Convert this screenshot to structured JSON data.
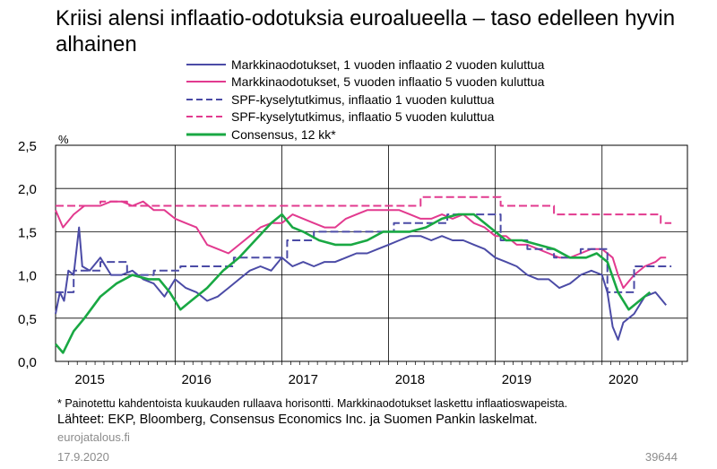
{
  "title": "Kriisi alensi inflaatio-odotuksia euroalueella – taso edelleen hyvin alhainen",
  "unit_label": "%",
  "footnote": "* Painotettu kahdentoista kuukauden rullaava horisontti. Markkinaodotukset laskettu inflaatioswapeista.",
  "sources": "Lähteet: EKP, Bloomberg, Consensus Economics Inc. ja Suomen Pankin laskelmat.",
  "site": "eurojatalous.fi",
  "date": "17.9.2020",
  "chart_code": "39644",
  "colors": {
    "navy": "#4b4ba6",
    "pink": "#e23a8f",
    "green": "#19a843",
    "grid": "#000000"
  },
  "chart_data": {
    "type": "line",
    "xlim": [
      2014.88,
      2020.8
    ],
    "ylim": [
      0,
      2.5
    ],
    "y_ticks": [
      "0,0",
      "0,5",
      "1,0",
      "1,5",
      "2,0",
      "2,5"
    ],
    "x_ticks": [
      "2015",
      "2016",
      "2017",
      "2018",
      "2019",
      "2020"
    ],
    "grid": true,
    "legend_placement": "top",
    "series": [
      {
        "name": "Markkinaodotukset, 1 vuoden inflaatio 2 vuoden kuluttua",
        "color": "#4b4ba6",
        "dash": "solid",
        "x": [
          2014.88,
          2014.92,
          2014.96,
          2015.0,
          2015.05,
          2015.1,
          2015.13,
          2015.2,
          2015.3,
          2015.4,
          2015.5,
          2015.6,
          2015.7,
          2015.8,
          2015.9,
          2016.0,
          2016.1,
          2016.2,
          2016.3,
          2016.4,
          2016.5,
          2016.6,
          2016.7,
          2016.8,
          2016.9,
          2017.0,
          2017.1,
          2017.2,
          2017.3,
          2017.4,
          2017.5,
          2017.6,
          2017.7,
          2017.8,
          2017.9,
          2018.0,
          2018.1,
          2018.2,
          2018.3,
          2018.4,
          2018.5,
          2018.6,
          2018.7,
          2018.8,
          2018.9,
          2019.0,
          2019.1,
          2019.2,
          2019.3,
          2019.4,
          2019.5,
          2019.6,
          2019.7,
          2019.8,
          2019.9,
          2020.0,
          2020.05,
          2020.1,
          2020.15,
          2020.2,
          2020.3,
          2020.4,
          2020.5,
          2020.6
        ],
        "y": [
          0.55,
          0.8,
          0.7,
          1.05,
          1.0,
          1.55,
          1.1,
          1.05,
          1.2,
          1.0,
          1.0,
          1.05,
          0.95,
          0.9,
          0.75,
          0.95,
          0.85,
          0.8,
          0.7,
          0.75,
          0.85,
          0.95,
          1.05,
          1.1,
          1.05,
          1.2,
          1.1,
          1.15,
          1.1,
          1.15,
          1.15,
          1.2,
          1.25,
          1.25,
          1.3,
          1.35,
          1.4,
          1.45,
          1.45,
          1.4,
          1.45,
          1.4,
          1.4,
          1.35,
          1.3,
          1.2,
          1.15,
          1.1,
          1.0,
          0.95,
          0.95,
          0.85,
          0.9,
          1.0,
          1.05,
          1.0,
          0.8,
          0.4,
          0.25,
          0.45,
          0.55,
          0.75,
          0.8,
          0.65
        ]
      },
      {
        "name": "Markkinaodotukset, 5 vuoden inflaatio 5 vuoden kuluttua",
        "color": "#e23a8f",
        "dash": "solid",
        "x": [
          2014.88,
          2014.95,
          2015.05,
          2015.15,
          2015.3,
          2015.4,
          2015.5,
          2015.6,
          2015.7,
          2015.8,
          2015.9,
          2016.0,
          2016.1,
          2016.2,
          2016.3,
          2016.4,
          2016.5,
          2016.6,
          2016.7,
          2016.8,
          2016.9,
          2017.0,
          2017.1,
          2017.2,
          2017.3,
          2017.4,
          2017.5,
          2017.6,
          2017.7,
          2017.8,
          2017.9,
          2018.0,
          2018.1,
          2018.2,
          2018.3,
          2018.4,
          2018.5,
          2018.6,
          2018.7,
          2018.8,
          2018.9,
          2019.0,
          2019.1,
          2019.2,
          2019.3,
          2019.4,
          2019.5,
          2019.6,
          2019.7,
          2019.8,
          2019.9,
          2020.0,
          2020.1,
          2020.15,
          2020.2,
          2020.3,
          2020.4,
          2020.5,
          2020.55,
          2020.6
        ],
        "y": [
          1.75,
          1.55,
          1.7,
          1.8,
          1.8,
          1.85,
          1.85,
          1.8,
          1.85,
          1.75,
          1.75,
          1.65,
          1.6,
          1.55,
          1.35,
          1.3,
          1.25,
          1.35,
          1.45,
          1.55,
          1.6,
          1.6,
          1.7,
          1.65,
          1.6,
          1.55,
          1.55,
          1.65,
          1.7,
          1.75,
          1.75,
          1.75,
          1.75,
          1.7,
          1.65,
          1.65,
          1.7,
          1.65,
          1.7,
          1.6,
          1.55,
          1.45,
          1.45,
          1.35,
          1.35,
          1.3,
          1.25,
          1.2,
          1.2,
          1.25,
          1.3,
          1.3,
          1.2,
          1.0,
          0.85,
          1.0,
          1.1,
          1.15,
          1.2,
          1.2
        ]
      },
      {
        "name": "SPF-kyselytutkimus, inflaatio 1 vuoden kuluttua",
        "color": "#4b4ba6",
        "dash": "dashed",
        "step": true,
        "x": [
          2014.88,
          2015.05,
          2015.3,
          2015.55,
          2015.8,
          2016.05,
          2016.3,
          2016.55,
          2016.8,
          2017.05,
          2017.3,
          2017.55,
          2017.8,
          2018.05,
          2018.3,
          2018.55,
          2018.8,
          2019.05,
          2019.3,
          2019.55,
          2019.8,
          2020.05,
          2020.3,
          2020.55,
          2020.65
        ],
        "y": [
          0.8,
          1.05,
          1.15,
          1.0,
          1.05,
          1.1,
          1.1,
          1.2,
          1.2,
          1.4,
          1.5,
          1.5,
          1.5,
          1.6,
          1.6,
          1.7,
          1.7,
          1.4,
          1.3,
          1.2,
          1.3,
          0.8,
          1.1,
          1.1,
          1.1
        ]
      },
      {
        "name": "SPF-kyselytutkimus, inflaatio 5 vuoden kuluttua",
        "color": "#e23a8f",
        "dash": "dashed",
        "step": true,
        "x": [
          2014.88,
          2015.3,
          2015.55,
          2015.8,
          2016.3,
          2016.55,
          2016.8,
          2017.05,
          2017.55,
          2017.8,
          2018.3,
          2018.55,
          2018.8,
          2019.05,
          2019.3,
          2019.55,
          2019.8,
          2020.05,
          2020.3,
          2020.55,
          2020.65
        ],
        "y": [
          1.8,
          1.85,
          1.8,
          1.8,
          1.8,
          1.8,
          1.8,
          1.8,
          1.8,
          1.8,
          1.9,
          1.9,
          1.9,
          1.8,
          1.8,
          1.7,
          1.7,
          1.7,
          1.7,
          1.6,
          1.6
        ]
      },
      {
        "name": "Consensus, 12 kk*",
        "color": "#19a843",
        "dash": "solid",
        "x": [
          2014.88,
          2014.95,
          2015.05,
          2015.15,
          2015.3,
          2015.45,
          2015.6,
          2015.75,
          2015.85,
          2015.95,
          2016.05,
          2016.15,
          2016.3,
          2016.45,
          2016.6,
          2016.75,
          2016.9,
          2017.0,
          2017.1,
          2017.2,
          2017.35,
          2017.5,
          2017.65,
          2017.8,
          2017.95,
          2018.05,
          2018.2,
          2018.35,
          2018.5,
          2018.65,
          2018.8,
          2018.95,
          2019.1,
          2019.25,
          2019.4,
          2019.55,
          2019.7,
          2019.85,
          2019.95,
          2020.05,
          2020.15,
          2020.25,
          2020.35,
          2020.45
        ],
        "y": [
          0.2,
          0.1,
          0.35,
          0.5,
          0.75,
          0.9,
          1.0,
          0.95,
          0.95,
          0.8,
          0.6,
          0.7,
          0.85,
          1.05,
          1.2,
          1.4,
          1.6,
          1.7,
          1.55,
          1.5,
          1.4,
          1.35,
          1.35,
          1.4,
          1.5,
          1.5,
          1.5,
          1.55,
          1.65,
          1.7,
          1.7,
          1.55,
          1.4,
          1.4,
          1.35,
          1.3,
          1.2,
          1.2,
          1.25,
          1.15,
          0.8,
          0.6,
          0.7,
          0.8
        ]
      }
    ]
  }
}
